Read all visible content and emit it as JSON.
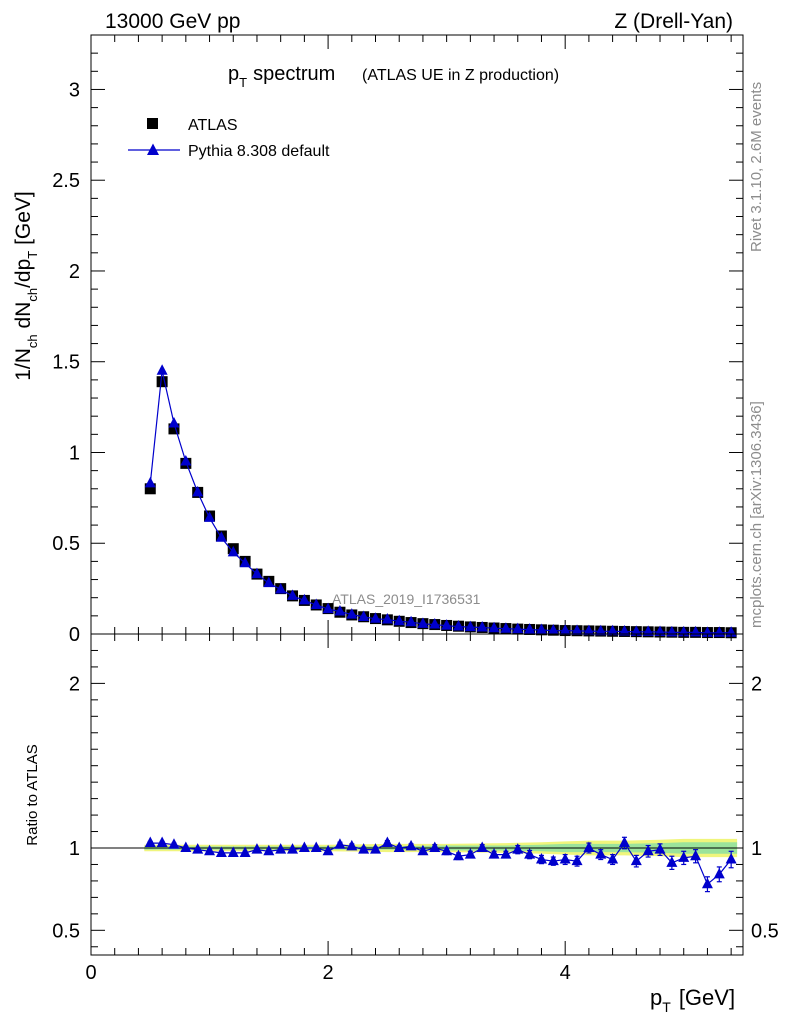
{
  "header": {
    "left": "13000 GeV pp",
    "right": "Z (Drell-Yan)"
  },
  "side_text": {
    "rivet": "Rivet 3.1.10,  2.6M events",
    "mcplots": "mcplots.cern.ch [arXiv:1306.3436]"
  },
  "chart_data": [
    {
      "type": "scatter",
      "title_main": "p",
      "title_sub": "T",
      "title_rest": "spectrum",
      "title_paren": "(ATLAS UE in Z production)",
      "ylabel_parts": [
        "1/N",
        "ch",
        " dN",
        "ch",
        "/dp",
        "T",
        " [GeV]"
      ],
      "watermark": "ATLAS_2019_I1736531",
      "xlim": [
        0,
        5.5
      ],
      "ylim": [
        0,
        3.3
      ],
      "yticks": [
        0,
        0.5,
        1,
        1.5,
        2,
        2.5,
        3
      ],
      "ytick_labels": [
        "0",
        "0.5",
        "1",
        "1.5",
        "2",
        "2.5",
        "3"
      ],
      "legend_position": "top-left",
      "series": [
        {
          "name": "ATLAS",
          "marker": "square",
          "color": "#000000",
          "x": [
            0.5,
            0.6,
            0.7,
            0.8,
            0.9,
            1.0,
            1.1,
            1.2,
            1.3,
            1.4,
            1.5,
            1.6,
            1.7,
            1.8,
            1.9,
            2.0,
            2.1,
            2.2,
            2.3,
            2.4,
            2.5,
            2.6,
            2.7,
            2.8,
            2.9,
            3.0,
            3.1,
            3.2,
            3.3,
            3.4,
            3.5,
            3.6,
            3.7,
            3.8,
            3.9,
            4.0,
            4.1,
            4.2,
            4.3,
            4.4,
            4.5,
            4.6,
            4.7,
            4.8,
            4.9,
            5.0,
            5.1,
            5.2,
            5.3,
            5.4
          ],
          "y": [
            0.8,
            1.39,
            1.13,
            0.94,
            0.78,
            0.65,
            0.54,
            0.47,
            0.4,
            0.33,
            0.29,
            0.25,
            0.21,
            0.185,
            0.16,
            0.14,
            0.12,
            0.105,
            0.095,
            0.085,
            0.078,
            0.07,
            0.063,
            0.057,
            0.052,
            0.047,
            0.043,
            0.039,
            0.036,
            0.033,
            0.03,
            0.027,
            0.025,
            0.023,
            0.021,
            0.019,
            0.018,
            0.017,
            0.016,
            0.015,
            0.014,
            0.013,
            0.012,
            0.011,
            0.01,
            0.009,
            0.009,
            0.008,
            0.008,
            0.007
          ]
        },
        {
          "name": "Pythia 8.308 default",
          "marker": "triangle",
          "color": "#0000cc",
          "x": [
            0.5,
            0.6,
            0.7,
            0.8,
            0.9,
            1.0,
            1.1,
            1.2,
            1.3,
            1.4,
            1.5,
            1.6,
            1.7,
            1.8,
            1.9,
            2.0,
            2.1,
            2.2,
            2.3,
            2.4,
            2.5,
            2.6,
            2.7,
            2.8,
            2.9,
            3.0,
            3.1,
            3.2,
            3.3,
            3.4,
            3.5,
            3.6,
            3.7,
            3.8,
            3.9,
            4.0,
            4.1,
            4.2,
            4.3,
            4.4,
            4.5,
            4.6,
            4.7,
            4.8,
            4.9,
            5.0,
            5.1,
            5.2,
            5.3,
            5.4
          ],
          "y": [
            0.83,
            1.45,
            1.16,
            0.95,
            0.78,
            0.64,
            0.53,
            0.45,
            0.39,
            0.33,
            0.28,
            0.245,
            0.21,
            0.185,
            0.16,
            0.137,
            0.124,
            0.107,
            0.094,
            0.084,
            0.08,
            0.07,
            0.065,
            0.056,
            0.052,
            0.046,
            0.041,
            0.038,
            0.036,
            0.032,
            0.029,
            0.027,
            0.024,
            0.022,
            0.019,
            0.018,
            0.017,
            0.016,
            0.015,
            0.015,
            0.014,
            0.012,
            0.012,
            0.011,
            0.009,
            0.009,
            0.009,
            0.006,
            0.007,
            0.007
          ]
        }
      ]
    },
    {
      "type": "scatter",
      "ylabel": "Ratio to ATLAS",
      "xlabel_main": "p",
      "xlabel_sub": "T",
      "xlabel_rest": "[GeV]",
      "xlim": [
        0,
        5.5
      ],
      "ylim": [
        0.35,
        2.3
      ],
      "xticks": [
        0,
        2,
        4
      ],
      "xtick_labels": [
        "0",
        "2",
        "4"
      ],
      "yticks": [
        0.5,
        1,
        2
      ],
      "ytick_labels": [
        "0.5",
        "1",
        "2"
      ],
      "reference_line": 1.0,
      "band": {
        "x": [
          0.45,
          0.5,
          1.0,
          1.5,
          2.0,
          2.5,
          3.0,
          3.5,
          3.8,
          4.0,
          4.2,
          4.5,
          4.8,
          5.0,
          5.2,
          5.45
        ],
        "inner_low": [
          0.99,
          0.99,
          0.99,
          0.99,
          0.99,
          0.99,
          0.985,
          0.985,
          0.98,
          0.975,
          0.975,
          0.975,
          0.97,
          0.965,
          0.965,
          0.965
        ],
        "inner_high": [
          1.01,
          1.01,
          1.01,
          1.01,
          1.01,
          1.01,
          1.015,
          1.015,
          1.02,
          1.025,
          1.025,
          1.025,
          1.03,
          1.035,
          1.035,
          1.035
        ],
        "outer_low": [
          0.98,
          0.98,
          0.98,
          0.98,
          0.98,
          0.975,
          0.975,
          0.97,
          0.965,
          0.96,
          0.955,
          0.955,
          0.95,
          0.945,
          0.945,
          0.945
        ],
        "outer_high": [
          1.02,
          1.02,
          1.02,
          1.02,
          1.02,
          1.025,
          1.025,
          1.03,
          1.035,
          1.04,
          1.045,
          1.045,
          1.05,
          1.055,
          1.055,
          1.055
        ]
      },
      "series": [
        {
          "name": "Pythia 8.308 default",
          "marker": "triangle",
          "color": "#0000cc",
          "x": [
            0.5,
            0.6,
            0.7,
            0.8,
            0.9,
            1.0,
            1.1,
            1.2,
            1.3,
            1.4,
            1.5,
            1.6,
            1.7,
            1.8,
            1.9,
            2.0,
            2.1,
            2.2,
            2.3,
            2.4,
            2.5,
            2.6,
            2.7,
            2.8,
            2.9,
            3.0,
            3.1,
            3.2,
            3.3,
            3.4,
            3.5,
            3.6,
            3.7,
            3.8,
            3.9,
            4.0,
            4.1,
            4.2,
            4.3,
            4.4,
            4.5,
            4.6,
            4.7,
            4.8,
            4.9,
            5.0,
            5.1,
            5.2,
            5.3,
            5.4
          ],
          "y": [
            1.03,
            1.03,
            1.02,
            1.0,
            0.99,
            0.98,
            0.97,
            0.97,
            0.97,
            0.99,
            0.98,
            0.99,
            0.99,
            1.0,
            1.0,
            0.98,
            1.02,
            1.01,
            0.99,
            0.99,
            1.03,
            1.0,
            1.01,
            0.98,
            1.0,
            0.98,
            0.95,
            0.96,
            1.0,
            0.96,
            0.96,
            0.99,
            0.96,
            0.93,
            0.92,
            0.93,
            0.92,
            1.0,
            0.96,
            0.93,
            1.03,
            0.92,
            0.98,
            0.99,
            0.91,
            0.94,
            0.95,
            0.78,
            0.84,
            0.93
          ],
          "yerr": [
            0.01,
            0.01,
            0.01,
            0.01,
            0.01,
            0.01,
            0.01,
            0.01,
            0.01,
            0.01,
            0.01,
            0.01,
            0.01,
            0.01,
            0.01,
            0.01,
            0.015,
            0.015,
            0.015,
            0.015,
            0.015,
            0.015,
            0.015,
            0.015,
            0.02,
            0.02,
            0.02,
            0.02,
            0.02,
            0.02,
            0.02,
            0.025,
            0.025,
            0.025,
            0.025,
            0.03,
            0.03,
            0.03,
            0.03,
            0.03,
            0.035,
            0.035,
            0.035,
            0.035,
            0.04,
            0.04,
            0.04,
            0.045,
            0.045,
            0.05
          ]
        }
      ]
    }
  ]
}
